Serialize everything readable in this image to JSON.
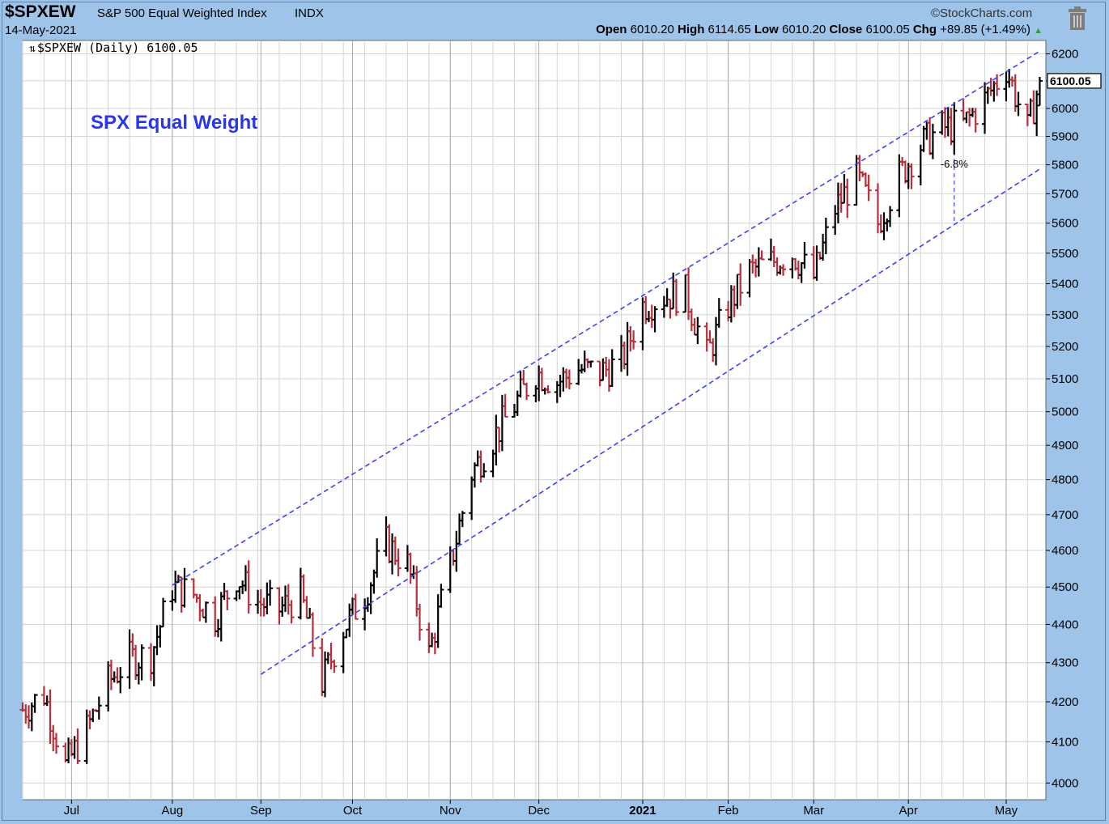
{
  "header": {
    "symbol": "$SPXEW",
    "name": "S&P 500 Equal Weighted Index",
    "exchange": "INDX",
    "date": "14-May-2021",
    "brand": "©StockCharts.com",
    "open_label": "Open",
    "open": "6010.20",
    "high_label": "High",
    "high": "6114.65",
    "low_label": "Low",
    "low": "6010.20",
    "close_label": "Close",
    "close": "6100.05",
    "chg_label": "Chg",
    "chg": "+89.85 (+1.49%)",
    "trash_icon": "trash-icon"
  },
  "chart_data": {
    "type": "ohlc",
    "plot_label": "$SPXEW (Daily) 6100.05",
    "title": "SPX Equal Weight",
    "price_tag": "6100.05",
    "annotation": "-6.8%",
    "y_log": true,
    "ylim": [
      3960,
      6250
    ],
    "y_ticks": [
      4000,
      4100,
      4200,
      4300,
      4400,
      4500,
      4600,
      4700,
      4800,
      4900,
      5000,
      5100,
      5200,
      5300,
      5400,
      5500,
      5600,
      5700,
      5800,
      5900,
      6000,
      6100,
      6200
    ],
    "x_ticks": [
      {
        "label": "Jul",
        "date": "2020-07-01"
      },
      {
        "label": "Aug",
        "date": "2020-08-03"
      },
      {
        "label": "Sep",
        "date": "2020-09-01"
      },
      {
        "label": "Oct",
        "date": "2020-10-01"
      },
      {
        "label": "Nov",
        "date": "2020-11-02"
      },
      {
        "label": "Dec",
        "date": "2020-12-01"
      },
      {
        "label": "2021",
        "date": "2021-01-04",
        "bold": true
      },
      {
        "label": "Feb",
        "date": "2021-02-01"
      },
      {
        "label": "Mar",
        "date": "2021-03-01"
      },
      {
        "label": "Apr",
        "date": "2021-04-01"
      },
      {
        "label": "May",
        "date": "2021-05-03"
      }
    ],
    "closes": [
      {
        "date": "2020-06-15",
        "close": 4180
      },
      {
        "date": "2020-06-22",
        "close": 4220
      },
      {
        "date": "2020-06-29",
        "close": 4040
      },
      {
        "date": "2020-07-06",
        "close": 4130
      },
      {
        "date": "2020-07-13",
        "close": 4250
      },
      {
        "date": "2020-07-20",
        "close": 4310
      },
      {
        "date": "2020-07-27",
        "close": 4320
      },
      {
        "date": "2020-08-03",
        "close": 4500
      },
      {
        "date": "2020-08-10",
        "close": 4480
      },
      {
        "date": "2020-08-17",
        "close": 4420
      },
      {
        "date": "2020-08-24",
        "close": 4530
      },
      {
        "date": "2020-08-31",
        "close": 4460
      },
      {
        "date": "2020-09-07",
        "close": 4440
      },
      {
        "date": "2020-09-14",
        "close": 4480
      },
      {
        "date": "2020-09-21",
        "close": 4250
      },
      {
        "date": "2020-09-28",
        "close": 4390
      },
      {
        "date": "2020-10-05",
        "close": 4480
      },
      {
        "date": "2020-10-12",
        "close": 4620
      },
      {
        "date": "2020-10-19",
        "close": 4560
      },
      {
        "date": "2020-10-26",
        "close": 4320
      },
      {
        "date": "2020-11-02",
        "close": 4560
      },
      {
        "date": "2020-11-09",
        "close": 4820
      },
      {
        "date": "2020-11-16",
        "close": 4920
      },
      {
        "date": "2020-11-23",
        "close": 5020
      },
      {
        "date": "2020-11-30",
        "close": 5120
      },
      {
        "date": "2020-12-07",
        "close": 5090
      },
      {
        "date": "2020-12-14",
        "close": 5130
      },
      {
        "date": "2020-12-21",
        "close": 5120
      },
      {
        "date": "2020-12-28",
        "close": 5150
      },
      {
        "date": "2021-01-04",
        "close": 5330
      },
      {
        "date": "2021-01-11",
        "close": 5360
      },
      {
        "date": "2021-01-18",
        "close": 5370
      },
      {
        "date": "2021-01-25",
        "close": 5170
      },
      {
        "date": "2021-02-01",
        "close": 5330
      },
      {
        "date": "2021-02-08",
        "close": 5440
      },
      {
        "date": "2021-02-15",
        "close": 5470
      },
      {
        "date": "2021-02-22",
        "close": 5500
      },
      {
        "date": "2021-03-01",
        "close": 5420
      },
      {
        "date": "2021-03-08",
        "close": 5650
      },
      {
        "date": "2021-03-15",
        "close": 5760
      },
      {
        "date": "2021-03-22",
        "close": 5600
      },
      {
        "date": "2021-03-29",
        "close": 5760
      },
      {
        "date": "2021-04-05",
        "close": 5870
      },
      {
        "date": "2021-04-12",
        "close": 5930
      },
      {
        "date": "2021-04-19",
        "close": 5940
      },
      {
        "date": "2021-04-26",
        "close": 6030
      },
      {
        "date": "2021-05-03",
        "close": 6150
      },
      {
        "date": "2021-05-10",
        "close": 5920
      },
      {
        "date": "2021-05-14",
        "close": 6100
      }
    ],
    "channel_upper": [
      {
        "date": "2020-08-03",
        "value": 4505
      },
      {
        "date": "2021-05-14",
        "value": 6210
      }
    ],
    "channel_lower": [
      {
        "date": "2020-09-01",
        "value": 4270
      },
      {
        "date": "2021-05-14",
        "value": 5785
      }
    ],
    "colors": {
      "up": "#000000",
      "down": "#b5303a",
      "channel": "#3a43ee",
      "title": "#2a36e8"
    }
  }
}
